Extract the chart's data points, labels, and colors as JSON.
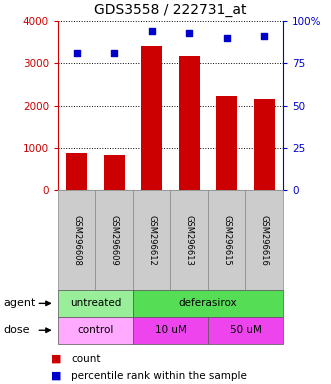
{
  "title": "GDS3558 / 222731_at",
  "samples": [
    "GSM296608",
    "GSM296609",
    "GSM296612",
    "GSM296613",
    "GSM296615",
    "GSM296616"
  ],
  "counts": [
    880,
    820,
    3420,
    3180,
    2230,
    2160
  ],
  "percentiles": [
    81,
    81,
    94,
    93,
    90,
    91
  ],
  "ylim_left": [
    0,
    4000
  ],
  "ylim_right": [
    0,
    100
  ],
  "yticks_left": [
    0,
    1000,
    2000,
    3000,
    4000
  ],
  "yticks_right": [
    0,
    25,
    50,
    75,
    100
  ],
  "bar_color": "#cc0000",
  "dot_color": "#0000cc",
  "agent_groups": [
    {
      "label": "untreated",
      "start": 0,
      "end": 2,
      "color": "#99ee99"
    },
    {
      "label": "deferasirox",
      "start": 2,
      "end": 6,
      "color": "#55dd55"
    }
  ],
  "dose_groups": [
    {
      "label": "control",
      "start": 0,
      "end": 2,
      "color": "#ffaaff"
    },
    {
      "label": "10 uM",
      "start": 2,
      "end": 4,
      "color": "#ee44ee"
    },
    {
      "label": "50 uM",
      "start": 4,
      "end": 6,
      "color": "#ee44ee"
    }
  ],
  "left_axis_color": "#cc0000",
  "right_axis_color": "#0000cc",
  "background_color": "#ffffff",
  "plot_bg_color": "#ffffff",
  "sample_box_color": "#cccccc",
  "grid_color": "#000000"
}
